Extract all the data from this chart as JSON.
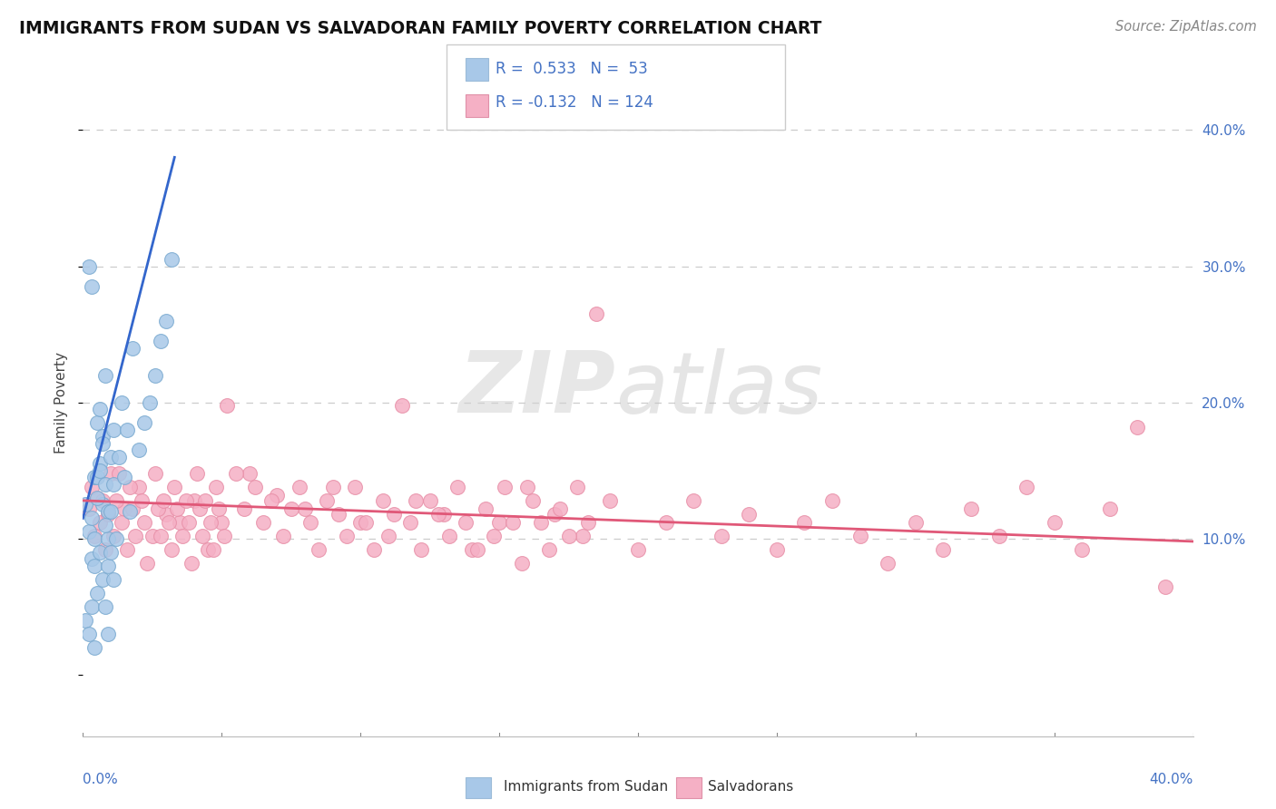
{
  "title": "IMMIGRANTS FROM SUDAN VS SALVADORAN FAMILY POVERTY CORRELATION CHART",
  "source": "Source: ZipAtlas.com",
  "ylabel": "Family Poverty",
  "right_yticks": [
    "40.0%",
    "30.0%",
    "20.0%",
    "10.0%"
  ],
  "right_ytick_vals": [
    0.4,
    0.3,
    0.2,
    0.1
  ],
  "xmin": 0.0,
  "xmax": 0.4,
  "ymin": -0.045,
  "ymax": 0.445,
  "r_blue": 0.533,
  "n_blue": 53,
  "r_pink": -0.132,
  "n_pink": 124,
  "blue_color": "#a8c8e8",
  "pink_color": "#f5b0c5",
  "blue_edge_color": "#7aaad0",
  "pink_edge_color": "#e890a8",
  "blue_line_color": "#3366cc",
  "pink_line_color": "#e05878",
  "background_color": "#ffffff",
  "blue_scatter": [
    [
      0.001,
      0.125
    ],
    [
      0.002,
      0.105
    ],
    [
      0.003,
      0.085
    ],
    [
      0.003,
      0.115
    ],
    [
      0.004,
      0.145
    ],
    [
      0.004,
      0.1
    ],
    [
      0.005,
      0.185
    ],
    [
      0.005,
      0.145
    ],
    [
      0.006,
      0.195
    ],
    [
      0.006,
      0.155
    ],
    [
      0.007,
      0.125
    ],
    [
      0.007,
      0.175
    ],
    [
      0.008,
      0.22
    ],
    [
      0.008,
      0.14
    ],
    [
      0.009,
      0.1
    ],
    [
      0.009,
      0.12
    ],
    [
      0.01,
      0.16
    ],
    [
      0.01,
      0.12
    ],
    [
      0.011,
      0.18
    ],
    [
      0.011,
      0.14
    ],
    [
      0.012,
      0.1
    ],
    [
      0.013,
      0.16
    ],
    [
      0.014,
      0.2
    ],
    [
      0.015,
      0.145
    ],
    [
      0.016,
      0.18
    ],
    [
      0.017,
      0.12
    ],
    [
      0.018,
      0.24
    ],
    [
      0.02,
      0.165
    ],
    [
      0.022,
      0.185
    ],
    [
      0.024,
      0.2
    ],
    [
      0.026,
      0.22
    ],
    [
      0.028,
      0.245
    ],
    [
      0.03,
      0.26
    ],
    [
      0.032,
      0.305
    ],
    [
      0.002,
      0.3
    ],
    [
      0.003,
      0.285
    ],
    [
      0.004,
      0.08
    ],
    [
      0.005,
      0.06
    ],
    [
      0.006,
      0.09
    ],
    [
      0.007,
      0.07
    ],
    [
      0.008,
      0.11
    ],
    [
      0.009,
      0.08
    ],
    [
      0.01,
      0.09
    ],
    [
      0.011,
      0.07
    ],
    [
      0.001,
      0.04
    ],
    [
      0.002,
      0.03
    ],
    [
      0.003,
      0.05
    ],
    [
      0.004,
      0.02
    ],
    [
      0.005,
      0.13
    ],
    [
      0.006,
      0.15
    ],
    [
      0.007,
      0.17
    ],
    [
      0.008,
      0.05
    ],
    [
      0.009,
      0.03
    ]
  ],
  "pink_scatter": [
    [
      0.005,
      0.13
    ],
    [
      0.01,
      0.148
    ],
    [
      0.015,
      0.122
    ],
    [
      0.02,
      0.138
    ],
    [
      0.025,
      0.102
    ],
    [
      0.03,
      0.118
    ],
    [
      0.035,
      0.112
    ],
    [
      0.04,
      0.128
    ],
    [
      0.045,
      0.092
    ],
    [
      0.05,
      0.112
    ],
    [
      0.06,
      0.148
    ],
    [
      0.07,
      0.132
    ],
    [
      0.08,
      0.122
    ],
    [
      0.09,
      0.138
    ],
    [
      0.1,
      0.112
    ],
    [
      0.11,
      0.102
    ],
    [
      0.12,
      0.128
    ],
    [
      0.13,
      0.118
    ],
    [
      0.14,
      0.092
    ],
    [
      0.15,
      0.112
    ],
    [
      0.16,
      0.138
    ],
    [
      0.17,
      0.118
    ],
    [
      0.18,
      0.102
    ],
    [
      0.19,
      0.128
    ],
    [
      0.2,
      0.092
    ],
    [
      0.21,
      0.112
    ],
    [
      0.22,
      0.128
    ],
    [
      0.23,
      0.102
    ],
    [
      0.24,
      0.118
    ],
    [
      0.25,
      0.092
    ],
    [
      0.26,
      0.112
    ],
    [
      0.27,
      0.128
    ],
    [
      0.28,
      0.102
    ],
    [
      0.29,
      0.082
    ],
    [
      0.3,
      0.112
    ],
    [
      0.31,
      0.092
    ],
    [
      0.32,
      0.122
    ],
    [
      0.33,
      0.102
    ],
    [
      0.34,
      0.138
    ],
    [
      0.35,
      0.112
    ],
    [
      0.36,
      0.092
    ],
    [
      0.37,
      0.122
    ],
    [
      0.38,
      0.182
    ],
    [
      0.39,
      0.065
    ],
    [
      0.002,
      0.122
    ],
    [
      0.003,
      0.138
    ],
    [
      0.004,
      0.102
    ],
    [
      0.006,
      0.112
    ],
    [
      0.007,
      0.128
    ],
    [
      0.008,
      0.092
    ],
    [
      0.009,
      0.118
    ],
    [
      0.011,
      0.102
    ],
    [
      0.012,
      0.128
    ],
    [
      0.013,
      0.148
    ],
    [
      0.014,
      0.112
    ],
    [
      0.016,
      0.092
    ],
    [
      0.017,
      0.138
    ],
    [
      0.018,
      0.122
    ],
    [
      0.019,
      0.102
    ],
    [
      0.021,
      0.128
    ],
    [
      0.022,
      0.112
    ],
    [
      0.023,
      0.082
    ],
    [
      0.026,
      0.148
    ],
    [
      0.027,
      0.122
    ],
    [
      0.028,
      0.102
    ],
    [
      0.029,
      0.128
    ],
    [
      0.031,
      0.112
    ],
    [
      0.032,
      0.092
    ],
    [
      0.033,
      0.138
    ],
    [
      0.034,
      0.122
    ],
    [
      0.036,
      0.102
    ],
    [
      0.037,
      0.128
    ],
    [
      0.038,
      0.112
    ],
    [
      0.039,
      0.082
    ],
    [
      0.041,
      0.148
    ],
    [
      0.042,
      0.122
    ],
    [
      0.043,
      0.102
    ],
    [
      0.044,
      0.128
    ],
    [
      0.046,
      0.112
    ],
    [
      0.047,
      0.092
    ],
    [
      0.048,
      0.138
    ],
    [
      0.049,
      0.122
    ],
    [
      0.051,
      0.102
    ],
    [
      0.052,
      0.198
    ],
    [
      0.055,
      0.148
    ],
    [
      0.058,
      0.122
    ],
    [
      0.062,
      0.138
    ],
    [
      0.065,
      0.112
    ],
    [
      0.068,
      0.128
    ],
    [
      0.072,
      0.102
    ],
    [
      0.075,
      0.122
    ],
    [
      0.078,
      0.138
    ],
    [
      0.082,
      0.112
    ],
    [
      0.085,
      0.092
    ],
    [
      0.088,
      0.128
    ],
    [
      0.092,
      0.118
    ],
    [
      0.095,
      0.102
    ],
    [
      0.098,
      0.138
    ],
    [
      0.102,
      0.112
    ],
    [
      0.105,
      0.092
    ],
    [
      0.108,
      0.128
    ],
    [
      0.112,
      0.118
    ],
    [
      0.115,
      0.198
    ],
    [
      0.118,
      0.112
    ],
    [
      0.122,
      0.092
    ],
    [
      0.125,
      0.128
    ],
    [
      0.128,
      0.118
    ],
    [
      0.132,
      0.102
    ],
    [
      0.135,
      0.138
    ],
    [
      0.138,
      0.112
    ],
    [
      0.142,
      0.092
    ],
    [
      0.145,
      0.122
    ],
    [
      0.148,
      0.102
    ],
    [
      0.152,
      0.138
    ],
    [
      0.155,
      0.112
    ],
    [
      0.158,
      0.082
    ],
    [
      0.162,
      0.128
    ],
    [
      0.165,
      0.112
    ],
    [
      0.168,
      0.092
    ],
    [
      0.172,
      0.122
    ],
    [
      0.175,
      0.102
    ],
    [
      0.178,
      0.138
    ],
    [
      0.182,
      0.112
    ],
    [
      0.185,
      0.265
    ]
  ],
  "blue_trend_x": [
    0.0,
    0.033
  ],
  "blue_trend_y_start": 0.115,
  "blue_trend_y_end": 0.38,
  "pink_trend_x": [
    0.0,
    0.4
  ],
  "pink_trend_y_start": 0.128,
  "pink_trend_y_end": 0.098
}
